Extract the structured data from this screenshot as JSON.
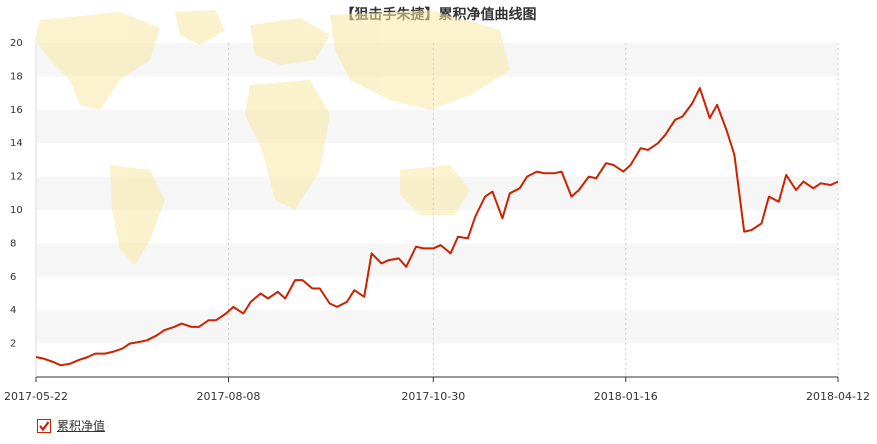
{
  "title": "【狙击手朱捷】累积净值曲线图",
  "legend": {
    "label": "累积净值",
    "checked": true
  },
  "colors": {
    "line": "#cc2200",
    "band": "#f6f6f6",
    "map": "#f7e7a6",
    "axis": "#333333"
  },
  "chart_data": {
    "type": "line",
    "title": "【狙击手朱捷】累积净值曲线图",
    "xlabel": "",
    "ylabel": "",
    "xlim": [
      "2017-05-22",
      "2018-04-12"
    ],
    "ylim": [
      0,
      20
    ],
    "y_ticks": [
      2,
      4,
      6,
      8,
      10,
      12,
      14,
      16,
      18,
      20
    ],
    "x_ticks": [
      "2017-05-22",
      "2017-08-08",
      "2017-10-30",
      "2018-01-16",
      "2018-04-12"
    ],
    "grid": {
      "vertical": true,
      "horizontal_bands": true
    },
    "legend_position": "bottom-left",
    "series": [
      {
        "name": "累积净值",
        "x": [
          "2017-05-22",
          "2017-05-25",
          "2017-05-29",
          "2017-06-01",
          "2017-06-05",
          "2017-06-08",
          "2017-06-12",
          "2017-06-15",
          "2017-06-19",
          "2017-06-22",
          "2017-06-26",
          "2017-06-29",
          "2017-07-03",
          "2017-07-06",
          "2017-07-10",
          "2017-07-13",
          "2017-07-17",
          "2017-07-20",
          "2017-07-24",
          "2017-07-27",
          "2017-07-31",
          "2017-08-03",
          "2017-08-07",
          "2017-08-10",
          "2017-08-14",
          "2017-08-17",
          "2017-08-21",
          "2017-08-24",
          "2017-08-28",
          "2017-08-31",
          "2017-09-04",
          "2017-09-07",
          "2017-09-11",
          "2017-09-14",
          "2017-09-18",
          "2017-09-21",
          "2017-09-25",
          "2017-09-28",
          "2017-10-02",
          "2017-10-05",
          "2017-10-09",
          "2017-10-12",
          "2017-10-16",
          "2017-10-19",
          "2017-10-23",
          "2017-10-26",
          "2017-10-30",
          "2017-11-02",
          "2017-11-06",
          "2017-11-09",
          "2017-11-13",
          "2017-11-16",
          "2017-11-20",
          "2017-11-23",
          "2017-11-27",
          "2017-11-30",
          "2017-12-04",
          "2017-12-07",
          "2017-12-11",
          "2017-12-14",
          "2017-12-18",
          "2017-12-21",
          "2017-12-25",
          "2017-12-28",
          "2018-01-01",
          "2018-01-04",
          "2018-01-08",
          "2018-01-11",
          "2018-01-15",
          "2018-01-18",
          "2018-01-22",
          "2018-01-25",
          "2018-01-29",
          "2018-02-01",
          "2018-02-05",
          "2018-02-08",
          "2018-02-12",
          "2018-02-15",
          "2018-02-19",
          "2018-02-22",
          "2018-02-26",
          "2018-03-01",
          "2018-03-05",
          "2018-03-08",
          "2018-03-12",
          "2018-03-15",
          "2018-03-19",
          "2018-03-22",
          "2018-03-26",
          "2018-03-29",
          "2018-04-02",
          "2018-04-05",
          "2018-04-09",
          "2018-04-12"
        ],
        "values": [
          1.2,
          1.1,
          0.9,
          0.7,
          0.8,
          1.0,
          1.2,
          1.4,
          1.4,
          1.5,
          1.7,
          2.0,
          2.1,
          2.2,
          2.5,
          2.8,
          3.0,
          3.2,
          3.0,
          3.0,
          3.4,
          3.4,
          3.8,
          4.2,
          3.8,
          4.5,
          5.0,
          4.7,
          5.1,
          4.7,
          5.8,
          5.8,
          5.3,
          5.3,
          4.4,
          4.2,
          4.5,
          5.2,
          4.8,
          7.4,
          6.8,
          7.0,
          7.1,
          6.6,
          7.8,
          7.7,
          7.7,
          7.9,
          7.4,
          8.4,
          8.3,
          9.6,
          10.8,
          11.1,
          9.5,
          11.0,
          11.3,
          12.0,
          12.3,
          12.2,
          12.2,
          12.3,
          10.8,
          11.2,
          12.0,
          11.9,
          12.8,
          12.7,
          12.3,
          12.7,
          13.7,
          13.6,
          14.0,
          14.5,
          15.4,
          15.6,
          16.4,
          17.3,
          15.5,
          16.3,
          14.7,
          13.3,
          8.7,
          8.8,
          9.2,
          10.8,
          10.5,
          12.1,
          11.2,
          11.7,
          11.3,
          11.6,
          11.5,
          11.7
        ]
      }
    ]
  }
}
